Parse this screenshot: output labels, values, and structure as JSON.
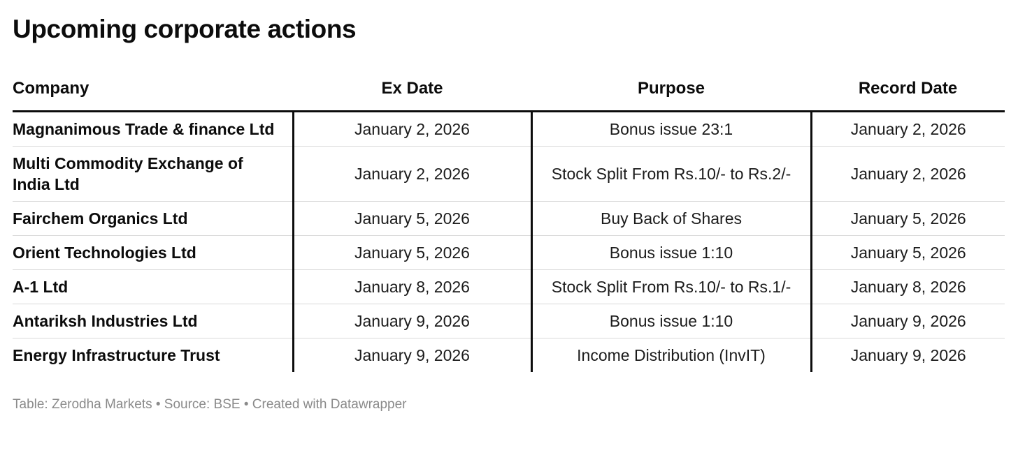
{
  "title": "Upcoming corporate actions",
  "table": {
    "columns": [
      "Company",
      "Ex Date",
      "Purpose",
      "Record Date"
    ],
    "rows": [
      {
        "company": "Magnanimous Trade & finance Ltd",
        "ex_date": "January 2, 2026",
        "purpose": "Bonus issue 23:1",
        "record_date": "January 2, 2026"
      },
      {
        "company": "Multi Commodity Exchange of India Ltd",
        "ex_date": "January 2, 2026",
        "purpose": "Stock Split From Rs.10/- to Rs.2/-",
        "record_date": "January 2, 2026"
      },
      {
        "company": "Fairchem Organics Ltd",
        "ex_date": "January 5, 2026",
        "purpose": "Buy Back of Shares",
        "record_date": "January 5, 2026"
      },
      {
        "company": "Orient Technologies Ltd",
        "ex_date": "January 5, 2026",
        "purpose": "Bonus issue 1:10",
        "record_date": "January 5, 2026"
      },
      {
        "company": "A-1 Ltd",
        "ex_date": "January 8, 2026",
        "purpose": "Stock Split From Rs.10/- to Rs.1/-",
        "record_date": "January 8, 2026"
      },
      {
        "company": "Antariksh Industries Ltd",
        "ex_date": "January 9, 2026",
        "purpose": "Bonus issue 1:10",
        "record_date": "January 9, 2026"
      },
      {
        "company": "Energy Infrastructure Trust",
        "ex_date": "January 9, 2026",
        "purpose": "Income Distribution (InvIT)",
        "record_date": "January 9, 2026"
      }
    ]
  },
  "footer": {
    "text": "Table: Zerodha Markets • Source: BSE • Created with Datawrapper"
  },
  "colors": {
    "header_rule": "#0c0c0c",
    "vertical_rule": "#0c0c0c",
    "row_divider": "#d9d9d9",
    "footer_text": "#8a8a8a",
    "text": "#1c1c1c",
    "background": "#ffffff"
  },
  "chart_data": {
    "type": "table",
    "title": "Upcoming corporate actions",
    "columns": [
      "Company",
      "Ex Date",
      "Purpose",
      "Record Date"
    ],
    "rows": [
      [
        "Magnanimous Trade & finance Ltd",
        "January 2, 2026",
        "Bonus issue 23:1",
        "January 2, 2026"
      ],
      [
        "Multi Commodity Exchange of India Ltd",
        "January 2, 2026",
        "Stock Split From Rs.10/- to Rs.2/-",
        "January 2, 2026"
      ],
      [
        "Fairchem Organics Ltd",
        "January 5, 2026",
        "Buy Back of Shares",
        "January 5, 2026"
      ],
      [
        "Orient Technologies Ltd",
        "January 5, 2026",
        "Bonus issue 1:10",
        "January 5, 2026"
      ],
      [
        "A-1 Ltd",
        "January 8, 2026",
        "Stock Split From Rs.10/- to Rs.1/-",
        "January 8, 2026"
      ],
      [
        "Antariksh Industries Ltd",
        "January 9, 2026",
        "Bonus issue 1:10",
        "January 9, 2026"
      ],
      [
        "Energy Infrastructure Trust",
        "January 9, 2026",
        "Income Distribution (InvIT)",
        "January 9, 2026"
      ]
    ],
    "layout_hints": {
      "column_alignment": [
        "left",
        "center",
        "center",
        "center"
      ],
      "header_rule": "thick-black-bottom",
      "vertical_rules_between_columns": true,
      "row_dividers": "light-gray",
      "attribution": "Table: Zerodha Markets • Source: BSE • Created with Datawrapper"
    }
  }
}
